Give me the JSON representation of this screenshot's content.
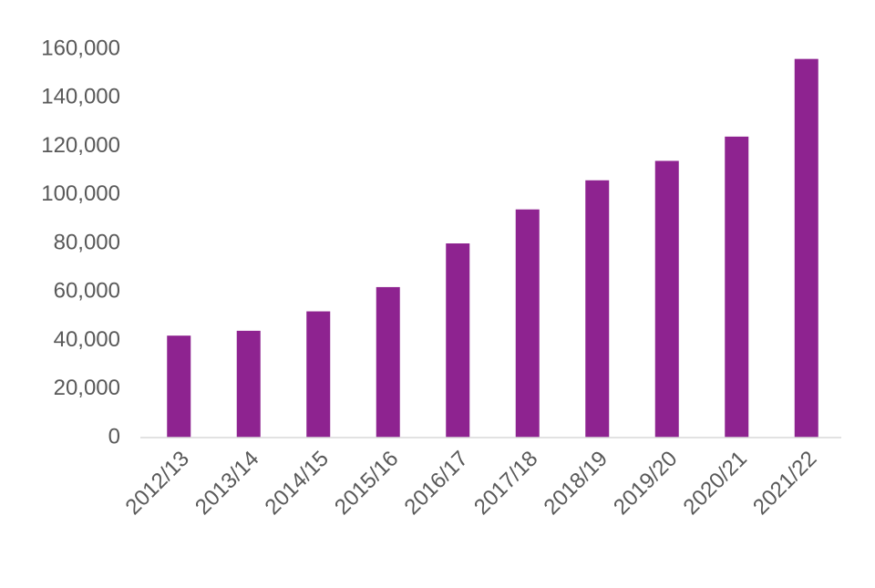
{
  "chart_data": {
    "type": "bar",
    "categories": [
      "2012/13",
      "2013/14",
      "2014/15",
      "2015/16",
      "2016/17",
      "2017/18",
      "2018/19",
      "2019/20",
      "2020/21",
      "2021/22"
    ],
    "values": [
      42000,
      44000,
      52000,
      62000,
      80000,
      94000,
      106000,
      114000,
      124000,
      156000
    ],
    "color": "#8e2390",
    "ylim": [
      0,
      160000
    ],
    "yticks": [
      0,
      {
        "value": 20000,
        "label": "20,000"
      },
      {
        "value": 40000,
        "label": "40,000"
      },
      {
        "value": 60000,
        "label": "60,000"
      },
      {
        "value": 80000,
        "label": "80,000"
      },
      {
        "value": 100000,
        "label": "100,000"
      },
      {
        "value": 120000,
        "label": "120,000"
      },
      {
        "value": 140000,
        "label": "140,000"
      },
      {
        "value": 160000,
        "label": "160,000"
      }
    ],
    "grid": false
  }
}
